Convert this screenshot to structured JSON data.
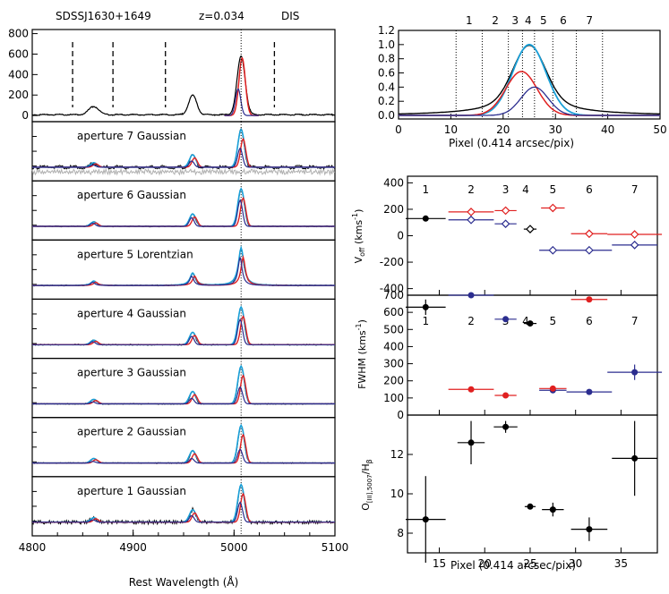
{
  "colors": {
    "black": "#000000",
    "red": "#e02020",
    "cyan": "#1aa0d8",
    "navy": "#2b2d8f",
    "gray": "#b0b0b0"
  },
  "header": {
    "object": "SDSSJ1630+1649",
    "redshift": "z=0.034",
    "instrument": "DIS"
  },
  "chart_data": [
    {
      "id": "spectra",
      "type": "line",
      "xlabel": "Rest Wavelength (Å)",
      "xlim": [
        4800,
        5100
      ],
      "x_ticks": [
        "4800",
        "4900",
        "5000",
        "5100"
      ],
      "top_panel": {
        "y_ticks": [
          "800",
          "600",
          "400",
          "200",
          "0"
        ],
        "ylim": [
          -60,
          840
        ],
        "dashed_lines_at": [
          4840,
          4880,
          4932,
          5040
        ],
        "lines": [
          {
            "wavelength": 4861,
            "height": 80,
            "width": 5
          },
          {
            "wavelength": 4959,
            "height": 190,
            "width": 4
          },
          {
            "wavelength": 5007,
            "height": 570,
            "width": 4
          }
        ],
        "series": [
          "total",
          "red component",
          "blue component"
        ]
      },
      "apertures": [
        {
          "label": "aperture 7  Gaussian",
          "profile": "Gaussian",
          "broad": 0.55
        },
        {
          "label": "aperture 6  Gaussian",
          "profile": "Gaussian",
          "broad": 0.9
        },
        {
          "label": "aperture 5  Lorentzian",
          "profile": "Lorentzian",
          "broad": 1.0
        },
        {
          "label": "aperture 4  Gaussian",
          "profile": "Gaussian",
          "broad": 0.85
        },
        {
          "label": "aperture 3  Gaussian",
          "profile": "Gaussian",
          "broad": 0.45
        },
        {
          "label": "aperture 2  Gaussian",
          "profile": "Gaussian",
          "broad": 0.3
        },
        {
          "label": "aperture 1  Gaussian",
          "profile": "Gaussian",
          "broad": 0.6
        }
      ]
    },
    {
      "id": "slit-profile",
      "type": "line",
      "xlabel": "Pixel (0.414 arcsec/pix)",
      "xlim": [
        0,
        50
      ],
      "ylim": [
        -0.05,
        1.2
      ],
      "x_ticks": [
        "0",
        "10",
        "20",
        "30",
        "40",
        "50"
      ],
      "y_ticks": [
        "1.2",
        "1.0",
        "0.8",
        "0.6",
        "0.4",
        "0.2",
        "0.0"
      ],
      "aperture_boundaries": [
        11,
        16,
        21,
        23.7,
        26,
        29.5,
        34,
        39
      ],
      "aperture_labels": [
        {
          "label": "1",
          "x": 13.5
        },
        {
          "label": "2",
          "x": 18.5
        },
        {
          "label": "3",
          "x": 22.3
        },
        {
          "label": "4",
          "x": 24.8
        },
        {
          "label": "5",
          "x": 27.7
        },
        {
          "label": "6",
          "x": 31.5
        },
        {
          "label": "7",
          "x": 36.5
        }
      ],
      "series": [
        {
          "name": "continuum",
          "center": 25,
          "amp": 0.99,
          "sigma": 3.0,
          "wings": 0.3
        },
        {
          "name": "total [OIII]",
          "center": 25,
          "amp": 1.0,
          "sigma": 3.2,
          "wings": 0.0
        },
        {
          "name": "red component",
          "center": 23.5,
          "amp": 0.62,
          "sigma": 3.0,
          "wings": 0.0
        },
        {
          "name": "blue component",
          "center": 26,
          "amp": 0.4,
          "sigma": 2.6,
          "wings": 0.0
        }
      ]
    },
    {
      "id": "kinematics",
      "type": "scatter",
      "xlabel": "Pixel (0.414 arcsec/pix)",
      "xlim": [
        11.5,
        39
      ],
      "x_ticks": [
        "15",
        "20",
        "25",
        "30",
        "35"
      ],
      "aperture_labels": [
        {
          "label": "1",
          "x": 13.5
        },
        {
          "label": "2",
          "x": 18.5
        },
        {
          "label": "3",
          "x": 22.3
        },
        {
          "label": "4",
          "x": 24.5
        },
        {
          "label": "5",
          "x": 27.5
        },
        {
          "label": "6",
          "x": 31.5
        },
        {
          "label": "7",
          "x": 36.5
        }
      ],
      "voff": {
        "ylabel_main": "V",
        "ylabel_sub": "off",
        "ylabel_unit": "(kms",
        "ylabel_sup": "-1",
        "ylabel_close": ")",
        "ylim": [
          -450,
          450
        ],
        "y_ticks": [
          "400",
          "200",
          "0",
          "-200",
          "-400"
        ],
        "points": [
          {
            "x": 13.5,
            "xerr": 2.2,
            "y": 130,
            "series": "black",
            "marker": "circle"
          },
          {
            "x": 18.5,
            "xerr": 2.5,
            "y": 180,
            "series": "red",
            "marker": "diamond"
          },
          {
            "x": 18.5,
            "xerr": 2.5,
            "y": 120,
            "series": "navy",
            "marker": "diamond"
          },
          {
            "x": 22.3,
            "xerr": 1.2,
            "y": 190,
            "series": "red",
            "marker": "diamond"
          },
          {
            "x": 22.3,
            "xerr": 1.2,
            "y": 90,
            "series": "navy",
            "marker": "diamond"
          },
          {
            "x": 25.0,
            "xerr": 0.7,
            "y": 50,
            "series": "black",
            "marker": "diamond"
          },
          {
            "x": 27.5,
            "xerr": 1.3,
            "y": 210,
            "series": "red",
            "marker": "diamond"
          },
          {
            "x": 27.5,
            "xerr": 1.5,
            "y": -110,
            "series": "navy",
            "marker": "diamond"
          },
          {
            "x": 31.5,
            "xerr": 2.0,
            "y": 15,
            "series": "red",
            "marker": "diamond"
          },
          {
            "x": 31.5,
            "xerr": 2.5,
            "y": -110,
            "series": "navy",
            "marker": "diamond"
          },
          {
            "x": 36.5,
            "xerr": 3.0,
            "y": 10,
            "series": "red",
            "marker": "diamond"
          },
          {
            "x": 36.5,
            "xerr": 2.5,
            "y": -70,
            "series": "navy",
            "marker": "diamond"
          }
        ]
      },
      "fwhm": {
        "ylabel_main": "FWHM",
        "ylabel_unit": "(kms",
        "ylabel_sup": "-1",
        "ylabel_close": ")",
        "ylim": [
          0,
          700
        ],
        "y_ticks": [
          "700",
          "600",
          "500",
          "400",
          "300",
          "200",
          "100",
          "0"
        ],
        "points": [
          {
            "x": 13.5,
            "xerr": 2.2,
            "y": 630,
            "yerr": 45,
            "series": "black"
          },
          {
            "x": 18.5,
            "xerr": 2.5,
            "y": 700,
            "series": "navy"
          },
          {
            "x": 18.5,
            "xerr": 2.5,
            "y": 150,
            "series": "red"
          },
          {
            "x": 22.3,
            "xerr": 1.2,
            "y": 560,
            "series": "navy"
          },
          {
            "x": 22.3,
            "xerr": 1.2,
            "y": 115,
            "series": "red"
          },
          {
            "x": 25.0,
            "xerr": 0.7,
            "y": 535,
            "series": "black"
          },
          {
            "x": 27.5,
            "xerr": 1.5,
            "y": 145,
            "series": "navy"
          },
          {
            "x": 27.5,
            "xerr": 1.5,
            "y": 155,
            "series": "red"
          },
          {
            "x": 31.5,
            "xerr": 2.5,
            "y": 135,
            "series": "navy"
          },
          {
            "x": 31.5,
            "xerr": 2.0,
            "y": 675,
            "series": "red"
          },
          {
            "x": 36.5,
            "xerr": 3.0,
            "y": 250,
            "yerr": 45,
            "series": "navy"
          }
        ]
      },
      "ratio": {
        "ylabel_main": "O",
        "ylabel_sub": "[III],5007",
        "ylabel_mid": "/H",
        "ylabel_sub2": "β",
        "ylim": [
          7,
          14
        ],
        "y_ticks": [
          "12",
          "10",
          "8"
        ],
        "points": [
          {
            "x": 13.5,
            "xerr": 2.2,
            "y": 8.7,
            "yerr": 2.2
          },
          {
            "x": 18.5,
            "xerr": 1.5,
            "y": 12.6,
            "yerr": 1.1
          },
          {
            "x": 22.3,
            "xerr": 1.3,
            "y": 13.4,
            "yerr": 0.3
          },
          {
            "x": 25.0,
            "xerr": 0.6,
            "y": 9.35,
            "yerr": 0.1
          },
          {
            "x": 27.5,
            "xerr": 1.2,
            "y": 9.2,
            "yerr": 0.35
          },
          {
            "x": 31.5,
            "xerr": 2.0,
            "y": 8.2,
            "yerr": 0.6
          },
          {
            "x": 36.5,
            "xerr": 2.5,
            "y": 11.8,
            "yerr": 1.9
          }
        ]
      }
    }
  ]
}
